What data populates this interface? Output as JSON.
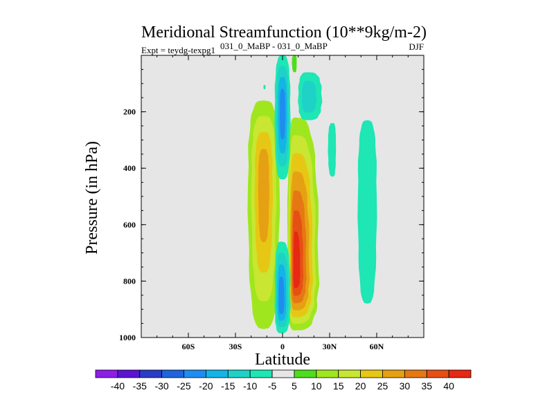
{
  "chart_data": {
    "type": "contour",
    "title": "Meridional Streamfunction (10**9kg/m-2)",
    "subtitle_left": "Expt = teydg-texpg1",
    "subtitle_center": "031_0_MaBP - 031_0_MaBP",
    "subtitle_right": "DJF",
    "xlabel": "Latitude",
    "ylabel": "Pressure (in hPa)",
    "xlim": [
      -90,
      90
    ],
    "ylim": [
      1000,
      0
    ],
    "xticks": [
      {
        "value": -60,
        "label": "60S"
      },
      {
        "value": -30,
        "label": "30S"
      },
      {
        "value": 0,
        "label": "0"
      },
      {
        "value": 30,
        "label": "30N"
      },
      {
        "value": 60,
        "label": "60N"
      }
    ],
    "yticks": [
      {
        "value": 200,
        "label": "200"
      },
      {
        "value": 400,
        "label": "400"
      },
      {
        "value": 600,
        "label": "600"
      },
      {
        "value": 800,
        "label": "800"
      },
      {
        "value": 1000,
        "label": "1000"
      }
    ],
    "background_color": "#e6e6e6",
    "colorbar": {
      "levels": [
        "-40",
        "-35",
        "-30",
        "-25",
        "-20",
        "-15",
        "-10",
        "-5",
        "5",
        "10",
        "15",
        "20",
        "25",
        "30",
        "35",
        "40"
      ],
      "colors": [
        "#8c1ee6",
        "#5a14d2",
        "#283cc8",
        "#1e64dc",
        "#1e8cf0",
        "#14b4e6",
        "#1ed2c8",
        "#1ee6b4",
        "#e6e6e6",
        "#50dc1e",
        "#a0e61e",
        "#c8e632",
        "#e6c814",
        "#e6a014",
        "#e67814",
        "#e65014",
        "#e62814"
      ]
    },
    "contours": [
      {
        "name": "sh-hadley-cell",
        "lon_min": -22,
        "lon_max": -2,
        "p_top": 160,
        "p_bottom": 970,
        "peak_lat": -12,
        "peak_p": 450,
        "peak_value": 25,
        "levels": [
          10,
          15,
          20,
          25
        ]
      },
      {
        "name": "nh-hadley-cell",
        "lon_min": 3,
        "lon_max": 23,
        "p_top": 220,
        "p_bottom": 975,
        "peak_lat": 8,
        "peak_p": 770,
        "peak_value": 40,
        "levels": [
          10,
          15,
          20,
          25,
          30,
          35,
          40
        ]
      },
      {
        "name": "upper-negative-cell",
        "lon_min": -5,
        "lon_max": 5,
        "p_top": 0,
        "p_bottom": 440,
        "peak_lat": 0,
        "peak_p": 200,
        "peak_value": -20,
        "levels": [
          -5,
          -10,
          -15,
          -20
        ]
      },
      {
        "name": "lower-negative-cell",
        "lon_min": -5,
        "lon_max": 5,
        "p_top": 660,
        "p_bottom": 985,
        "peak_lat": -1,
        "peak_p": 870,
        "peak_value": -20,
        "levels": [
          -5,
          -10,
          -15,
          -20
        ]
      },
      {
        "name": "nh-upper-small-cell",
        "lon_min": 10,
        "lon_max": 25,
        "p_top": 60,
        "p_bottom": 230,
        "peak_lat": 16,
        "peak_p": 150,
        "peak_value": -10,
        "levels": [
          -5,
          -10
        ]
      },
      {
        "name": "nh-midlat-cell",
        "lon_min": 48,
        "lon_max": 60,
        "p_top": 230,
        "p_bottom": 880,
        "peak_lat": 54,
        "peak_p": 500,
        "peak_value": -5,
        "levels": [
          -5
        ]
      },
      {
        "name": "nh-small-cell-30n",
        "lon_min": 29,
        "lon_max": 34,
        "p_top": 240,
        "p_bottom": 430,
        "peak_lat": 32,
        "peak_p": 320,
        "peak_value": -5,
        "levels": [
          -5
        ]
      },
      {
        "name": "upper-positive-sliver",
        "lon_min": 6,
        "lon_max": 9,
        "p_top": 0,
        "p_bottom": 60,
        "peak_lat": 8,
        "peak_p": 20,
        "peak_value": 5,
        "levels": [
          5
        ]
      },
      {
        "name": "tiny-negative-dot",
        "lon_min": -12,
        "lon_max": -11,
        "p_top": 105,
        "p_bottom": 120,
        "peak_lat": -11.5,
        "peak_p": 112,
        "peak_value": -5,
        "levels": [
          -5
        ]
      }
    ]
  }
}
